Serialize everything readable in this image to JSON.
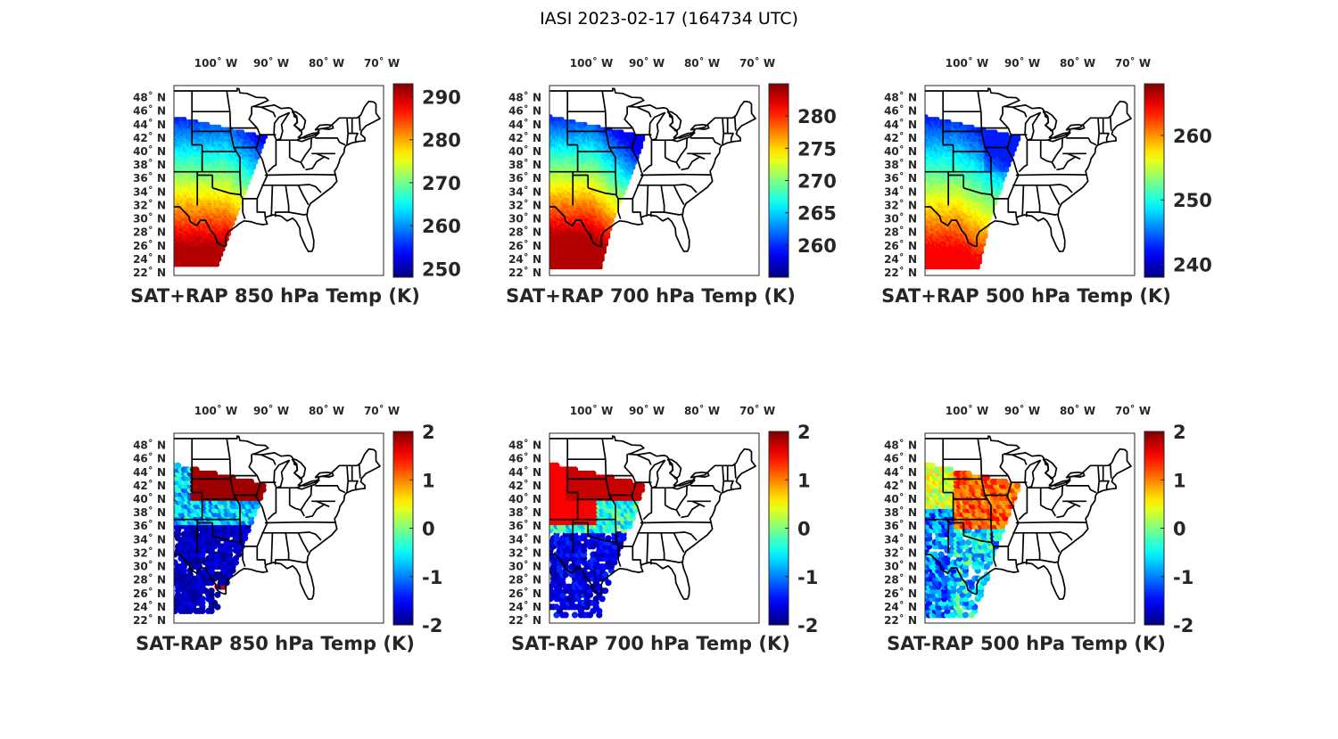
{
  "figure_title": "IASI 2023-02-17 (164734 UTC)",
  "lon_ticks": [
    "100˚ W",
    "90˚ W",
    "80˚ W",
    "70˚ W"
  ],
  "lat_ticks": [
    "48˚ N",
    "46˚ N",
    "44˚ N",
    "42˚ N",
    "40˚ N",
    "38˚ N",
    "36˚ N",
    "34˚ N",
    "32˚ N",
    "30˚ N",
    "28˚ N",
    "26˚ N",
    "24˚ N",
    "22˚ N"
  ],
  "colormap": "jet",
  "panels": [
    {
      "title": "SAT+RAP 850 hPa Temp (K)",
      "kind": "sum",
      "level": "850",
      "clim": [
        248,
        293
      ],
      "colorbar_ticks": [
        "250",
        "260",
        "270",
        "280",
        "290"
      ]
    },
    {
      "title": "SAT+RAP 700 hPa Temp (K)",
      "kind": "sum",
      "level": "700",
      "clim": [
        255,
        285
      ],
      "colorbar_ticks": [
        "260",
        "265",
        "270",
        "275",
        "280"
      ]
    },
    {
      "title": "SAT+RAP 500 hPa Temp (K)",
      "kind": "sum",
      "level": "500",
      "clim": [
        238,
        268
      ],
      "colorbar_ticks": [
        "240",
        "250",
        "260"
      ]
    },
    {
      "title": "SAT-RAP 850 hPa Temp (K)",
      "kind": "diff",
      "level": "850",
      "clim": [
        -2,
        2
      ],
      "colorbar_ticks": [
        "-2",
        "-1",
        "0",
        "1",
        "2"
      ]
    },
    {
      "title": "SAT-RAP 700 hPa Temp (K)",
      "kind": "diff",
      "level": "700",
      "clim": [
        -2,
        2
      ],
      "colorbar_ticks": [
        "-2",
        "-1",
        "0",
        "1",
        "2"
      ]
    },
    {
      "title": "SAT-RAP 500 hPa Temp (K)",
      "kind": "diff",
      "level": "500",
      "clim": [
        -2,
        2
      ],
      "colorbar_ticks": [
        "-2",
        "-1",
        "0",
        "1",
        "2"
      ]
    }
  ]
}
